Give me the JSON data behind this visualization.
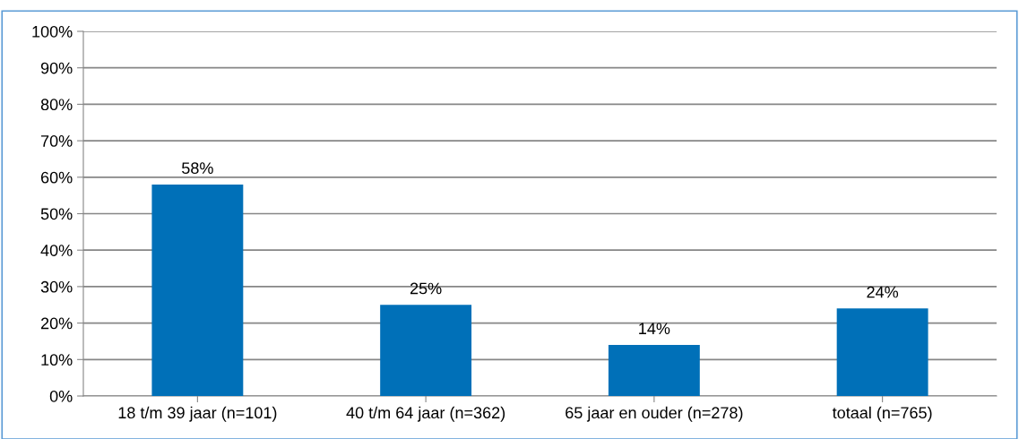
{
  "chart_data": {
    "type": "bar",
    "categories": [
      "18 t/m 39 jaar (n=101)",
      "40 t/m 64 jaar (n=362)",
      "65 jaar en ouder (n=278)",
      "totaal (n=765)"
    ],
    "values": [
      58,
      25,
      14,
      24
    ],
    "value_labels": [
      "58%",
      "25%",
      "14%",
      "24%"
    ],
    "color": "#0070b8",
    "ylim": [
      0,
      100
    ],
    "yticks": [
      {
        "value": 0,
        "label": "0%"
      },
      {
        "value": 10,
        "label": "10%"
      },
      {
        "value": 20,
        "label": "20%"
      },
      {
        "value": 30,
        "label": "30%"
      },
      {
        "value": 40,
        "label": "40%"
      },
      {
        "value": 50,
        "label": "50%"
      },
      {
        "value": 60,
        "label": "60%"
      },
      {
        "value": 70,
        "label": "70%"
      },
      {
        "value": 80,
        "label": "80%"
      },
      {
        "value": 90,
        "label": "90%"
      },
      {
        "value": 100,
        "label": "100%"
      }
    ],
    "grid": "y",
    "legend": false
  }
}
